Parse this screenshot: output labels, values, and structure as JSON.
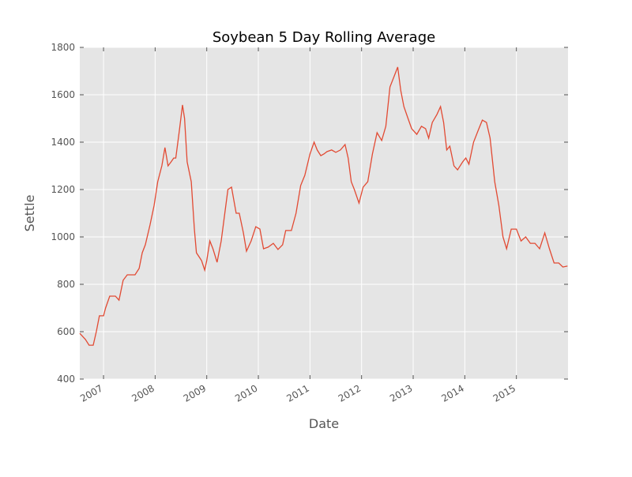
{
  "chart_data": {
    "type": "line",
    "title": "Soybean 5 Day Rolling Average",
    "x_label": "Date",
    "y_label": "Settle",
    "x": [
      2006.54,
      2006.65,
      2006.72,
      2006.8,
      2006.86,
      2006.92,
      2007.0,
      2007.04,
      2007.12,
      2007.23,
      2007.3,
      2007.38,
      2007.46,
      2007.53,
      2007.61,
      2007.69,
      2007.75,
      2007.81,
      2007.9,
      2007.98,
      2008.05,
      2008.13,
      2008.19,
      2008.25,
      2008.31,
      2008.36,
      2008.4,
      2008.47,
      2008.53,
      2008.57,
      2008.62,
      2008.7,
      2008.76,
      2008.8,
      2008.9,
      2008.96,
      2009.0,
      2009.06,
      2009.12,
      2009.2,
      2009.28,
      2009.35,
      2009.41,
      2009.48,
      2009.57,
      2009.63,
      2009.71,
      2009.77,
      2009.86,
      2009.95,
      2010.03,
      2010.1,
      2010.19,
      2010.29,
      2010.38,
      2010.47,
      2010.53,
      2010.64,
      2010.73,
      2010.82,
      2010.9,
      2011.0,
      2011.08,
      2011.14,
      2011.21,
      2011.27,
      2011.33,
      2011.42,
      2011.5,
      2011.59,
      2011.68,
      2011.74,
      2011.8,
      2011.86,
      2011.95,
      2012.03,
      2012.12,
      2012.21,
      2012.3,
      2012.39,
      2012.47,
      2012.55,
      2012.64,
      2012.7,
      2012.76,
      2012.82,
      2012.9,
      2012.97,
      2013.07,
      2013.16,
      2013.24,
      2013.3,
      2013.37,
      2013.46,
      2013.53,
      2013.59,
      2013.65,
      2013.71,
      2013.79,
      2013.86,
      2013.96,
      2014.02,
      2014.08,
      2014.17,
      2014.26,
      2014.34,
      2014.42,
      2014.49,
      2014.58,
      2014.66,
      2014.74,
      2014.81,
      2014.9,
      2015.0,
      2015.09,
      2015.18,
      2015.27,
      2015.36,
      2015.45,
      2015.55,
      2015.64,
      2015.73,
      2015.82,
      2015.9,
      2015.99
    ],
    "values": [
      593,
      567,
      543,
      543,
      600,
      667,
      667,
      700,
      750,
      750,
      733,
      817,
      840,
      840,
      840,
      867,
      933,
      967,
      1050,
      1133,
      1233,
      1300,
      1377,
      1300,
      1317,
      1333,
      1333,
      1450,
      1557,
      1500,
      1317,
      1233,
      1033,
      933,
      900,
      860,
      900,
      983,
      950,
      893,
      983,
      1100,
      1200,
      1210,
      1100,
      1100,
      1017,
      940,
      983,
      1043,
      1033,
      950,
      957,
      973,
      947,
      967,
      1027,
      1027,
      1100,
      1217,
      1260,
      1350,
      1400,
      1367,
      1343,
      1350,
      1360,
      1367,
      1357,
      1367,
      1390,
      1333,
      1233,
      1200,
      1143,
      1210,
      1233,
      1350,
      1440,
      1407,
      1467,
      1633,
      1683,
      1717,
      1617,
      1550,
      1500,
      1457,
      1433,
      1467,
      1457,
      1417,
      1483,
      1517,
      1550,
      1483,
      1367,
      1383,
      1300,
      1283,
      1317,
      1333,
      1307,
      1400,
      1450,
      1493,
      1483,
      1417,
      1233,
      1133,
      1000,
      950,
      1033,
      1033,
      983,
      1000,
      973,
      973,
      950,
      1017,
      950,
      890,
      890,
      873,
      877
    ],
    "color": "#e24a33",
    "xlim": [
      2006.54,
      2016.0
    ],
    "xticks": [
      2007,
      2008,
      2009,
      2010,
      2011,
      2012,
      2013,
      2014,
      2015
    ],
    "ylim": [
      400,
      1800
    ],
    "yticks": [
      400,
      600,
      800,
      1000,
      1200,
      1400,
      1600,
      1800
    ],
    "grid": true
  }
}
